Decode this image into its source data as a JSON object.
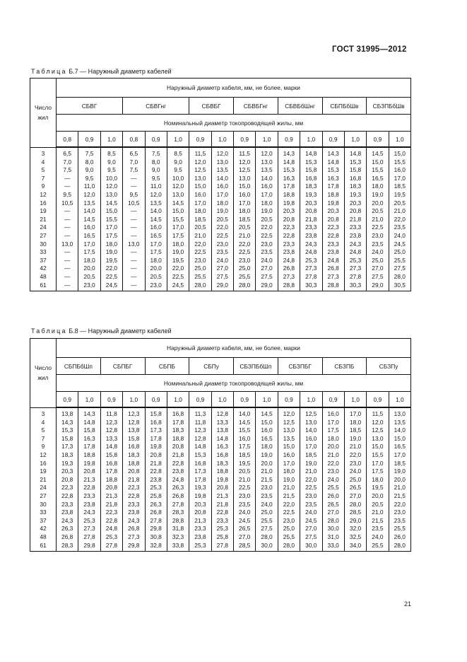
{
  "header": {
    "doc_code": "ГОСТ 31995—2012"
  },
  "tables": [
    {
      "caption_label": "Таблица",
      "caption_rest": "Б.7 — Наружный диаметр кабелей",
      "stub_header": "Число жил",
      "top_header": "Наружный диаметр кабеля, мм, не более, марки",
      "sub_header": "Номинальный диаметр токопроводящей жилы, мм",
      "brands": [
        {
          "name": "СБВГ",
          "sizes": [
            "0,8",
            "0,9",
            "1,0"
          ]
        },
        {
          "name": "СБВГнг",
          "sizes": [
            "0,8",
            "0,9",
            "1,0"
          ]
        },
        {
          "name": "СБВБГ",
          "sizes": [
            "0,9",
            "1,0"
          ]
        },
        {
          "name": "СБВБГнг",
          "sizes": [
            "0,9",
            "1,0"
          ]
        },
        {
          "name": "СБВБбШнг",
          "sizes": [
            "0,9",
            "1,0"
          ]
        },
        {
          "name": "СБПБбШв",
          "sizes": [
            "0,9",
            "1,0"
          ]
        },
        {
          "name": "СБЗПБбШв",
          "sizes": [
            "0,9",
            "1,0"
          ]
        }
      ],
      "rows": [
        [
          "3",
          "6,5",
          "7,5",
          "8,5",
          "6,5",
          "7,5",
          "8,5",
          "11,5",
          "12,0",
          "11,5",
          "12,0",
          "14,3",
          "14,8",
          "14,3",
          "14,8",
          "14,5",
          "15,0"
        ],
        [
          "4",
          "7,0",
          "8,0",
          "9,0",
          "7,0",
          "8,0",
          "9,0",
          "12,0",
          "13,0",
          "12,0",
          "13,0",
          "14,8",
          "15,3",
          "14,8",
          "15,3",
          "15,0",
          "15,5"
        ],
        [
          "5",
          "7,5",
          "9,0",
          "9,5",
          "7,5",
          "9,0",
          "9,5",
          "12,5",
          "13,5",
          "12,5",
          "13,5",
          "15,3",
          "15,8",
          "15,3",
          "15,8",
          "15,5",
          "16,0"
        ],
        [
          "7",
          "—",
          "9,5",
          "10,0",
          "—",
          "9,5",
          "10,0",
          "13,0",
          "14,0",
          "13,0",
          "14,0",
          "16,3",
          "16,8",
          "16,3",
          "16,8",
          "16,5",
          "17,0"
        ],
        [
          "9",
          "—",
          "11,0",
          "12,0",
          "—",
          "11,0",
          "12,0",
          "15,0",
          "16,0",
          "15,0",
          "16,0",
          "17,8",
          "18,3",
          "17,8",
          "18,3",
          "18,0",
          "18,5"
        ],
        [
          "12",
          "9,5",
          "12,0",
          "13,0",
          "9,5",
          "12,0",
          "13,0",
          "16,0",
          "17,0",
          "16,0",
          "17,0",
          "18,8",
          "19,3",
          "18,8",
          "19,3",
          "19,0",
          "19,5"
        ],
        [
          "16",
          "10,5",
          "13,5",
          "14,5",
          "10,5",
          "13,5",
          "14,5",
          "17,0",
          "18,0",
          "17,0",
          "18,0",
          "19,8",
          "20,3",
          "19,8",
          "20,3",
          "20,0",
          "20,5"
        ],
        [
          "19",
          "—",
          "14,0",
          "15,0",
          "—",
          "14,0",
          "15,0",
          "18,0",
          "19,0",
          "18,0",
          "19,0",
          "20,3",
          "20,8",
          "20,3",
          "20,8",
          "20,5",
          "21,0"
        ],
        [
          "21",
          "—",
          "14,5",
          "15,5",
          "—",
          "14,5",
          "15,5",
          "18,5",
          "20,5",
          "18,5",
          "20,5",
          "20,8",
          "21,8",
          "20,8",
          "21,8",
          "21,0",
          "22,0"
        ],
        [
          "24",
          "—",
          "16,0",
          "17,0",
          "—",
          "16,0",
          "17,0",
          "20,5",
          "22,0",
          "20,5",
          "22,0",
          "22,3",
          "23,3",
          "22,3",
          "23,3",
          "22,5",
          "23,5"
        ],
        [
          "27",
          "—",
          "16,5",
          "17,5",
          "—",
          "16,5",
          "17,5",
          "21,0",
          "22,5",
          "21,0",
          "22,5",
          "22,8",
          "23,8",
          "22,8",
          "23,8",
          "23,0",
          "24,0"
        ],
        [
          "30",
          "13,0",
          "17,0",
          "18,0",
          "13,0",
          "17,0",
          "18,0",
          "22,0",
          "23,0",
          "22,0",
          "23,0",
          "23,3",
          "24,3",
          "23,3",
          "24,3",
          "23,5",
          "24,5"
        ],
        [
          "33",
          "—",
          "17,5",
          "19,0",
          "—",
          "17,5",
          "19,0",
          "22,5",
          "23,5",
          "22,5",
          "23,5",
          "23,8",
          "24,8",
          "23,8",
          "24,8",
          "24,0",
          "25,0"
        ],
        [
          "37",
          "—",
          "18,0",
          "19,5",
          "—",
          "18,0",
          "19,5",
          "23,0",
          "24,0",
          "23,0",
          "24,0",
          "24,8",
          "25,3",
          "24,8",
          "25,3",
          "25,0",
          "25,5"
        ],
        [
          "42",
          "—",
          "20,0",
          "22,0",
          "—",
          "20,0",
          "22,0",
          "25,0",
          "27,0",
          "25,0",
          "27,0",
          "26,8",
          "27,3",
          "26,8",
          "27,3",
          "27,0",
          "27,5"
        ],
        [
          "48",
          "—",
          "20,5",
          "22,5",
          "—",
          "20,5",
          "22,5",
          "25,5",
          "27,5",
          "25,5",
          "27,5",
          "27,3",
          "27,8",
          "27,3",
          "27,8",
          "27,5",
          "28,0"
        ],
        [
          "61",
          "—",
          "23,0",
          "24,5",
          "—",
          "23,0",
          "24,5",
          "28,0",
          "29,0",
          "28,0",
          "29,0",
          "28,8",
          "30,3",
          "28,8",
          "30,3",
          "29,0",
          "30,5"
        ]
      ]
    },
    {
      "caption_label": "Таблица",
      "caption_rest": "Б.8 — Наружный диаметр кабелей",
      "stub_header": "Число жил",
      "top_header": "Наружный диаметр кабеля, мм, не более, марки",
      "sub_header": "Номинальный диаметр токопроводящей жилы, мм",
      "brands": [
        {
          "name": "СБПБбШп",
          "sizes": [
            "0,9",
            "1,0"
          ]
        },
        {
          "name": "СБПБГ",
          "sizes": [
            "0,9",
            "1,0"
          ]
        },
        {
          "name": "СБПБ",
          "sizes": [
            "0,9",
            "1,0"
          ]
        },
        {
          "name": "СБПу",
          "sizes": [
            "0,9",
            "1,0"
          ]
        },
        {
          "name": "СБЗПБбШп",
          "sizes": [
            "0,9",
            "1,0"
          ]
        },
        {
          "name": "СБЗПБГ",
          "sizes": [
            "0,9",
            "1,0"
          ]
        },
        {
          "name": "СБЗПБ",
          "sizes": [
            "0,9",
            "1,0"
          ]
        },
        {
          "name": "СБЗПу",
          "sizes": [
            "0,9",
            "1,0"
          ]
        }
      ],
      "rows": [
        [
          "3",
          "13,8",
          "14,3",
          "11,8",
          "12,3",
          "15,8",
          "16,8",
          "11,3",
          "12,8",
          "14,0",
          "14,5",
          "12,0",
          "12,5",
          "16,0",
          "17,0",
          "11,5",
          "13,0"
        ],
        [
          "4",
          "14,3",
          "14,8",
          "12,3",
          "12,8",
          "16,8",
          "17,8",
          "11,8",
          "13,3",
          "14,5",
          "15,0",
          "12,5",
          "13,0",
          "17,0",
          "18,0",
          "12,0",
          "13,5"
        ],
        [
          "5",
          "15,3",
          "15,8",
          "12,8",
          "13,8",
          "17,3",
          "18,3",
          "12,3",
          "13,8",
          "15,5",
          "16,0",
          "13,0",
          "14,0",
          "17,5",
          "18,5",
          "12,5",
          "14,0"
        ],
        [
          "7",
          "15,8",
          "16,3",
          "13,3",
          "15,8",
          "17,8",
          "18,8",
          "12,8",
          "14,8",
          "16,0",
          "16,5",
          "13,5",
          "16,0",
          "18,0",
          "19,0",
          "13,0",
          "15,0"
        ],
        [
          "9",
          "17,3",
          "17,8",
          "14,8",
          "16,8",
          "19,8",
          "20,8",
          "14,8",
          "16,3",
          "17,5",
          "18,0",
          "15,0",
          "17,0",
          "20,0",
          "21,0",
          "15,0",
          "16,5"
        ],
        [
          "12",
          "18,3",
          "18,8",
          "15,8",
          "18,3",
          "20,8",
          "21,8",
          "15,3",
          "16,8",
          "18,5",
          "19,0",
          "16,0",
          "18,5",
          "21,0",
          "22,0",
          "15,5",
          "17,0"
        ],
        [
          "16",
          "19,3",
          "19,8",
          "16,8",
          "18,8",
          "21,8",
          "22,8",
          "16,8",
          "18,3",
          "19,5",
          "20,0",
          "17,0",
          "19,0",
          "22,0",
          "23,0",
          "17,0",
          "18,5"
        ],
        [
          "19",
          "20,3",
          "20,8",
          "17,8",
          "20,8",
          "22,8",
          "23,8",
          "17,3",
          "18,8",
          "20,5",
          "21,0",
          "18,0",
          "21,0",
          "23,0",
          "24,0",
          "17,5",
          "19,0"
        ],
        [
          "21",
          "20,8",
          "21,3",
          "18,8",
          "21,8",
          "23,8",
          "24,8",
          "17,8",
          "19,8",
          "21,0",
          "21,5",
          "19,0",
          "22,0",
          "24,0",
          "25,0",
          "18,0",
          "20,0"
        ],
        [
          "24",
          "22,3",
          "22,8",
          "20,8",
          "22,3",
          "25,3",
          "26,3",
          "19,3",
          "20,8",
          "22,5",
          "23,0",
          "21,0",
          "22,5",
          "25,5",
          "26,5",
          "19,5",
          "21,0"
        ],
        [
          "27",
          "22,8",
          "23,3",
          "21,3",
          "22,8",
          "25,8",
          "26,8",
          "19,8",
          "21,3",
          "23,0",
          "23,5",
          "21,5",
          "23,0",
          "26,0",
          "27,0",
          "20,0",
          "21,5"
        ],
        [
          "30",
          "23,3",
          "23,8",
          "21,8",
          "23,3",
          "26,3",
          "27,8",
          "20,3",
          "21,8",
          "23,5",
          "24,0",
          "22,0",
          "23,5",
          "26,5",
          "28,0",
          "20,5",
          "22,0"
        ],
        [
          "33",
          "23,8",
          "24,3",
          "22,3",
          "23,8",
          "26,8",
          "28,3",
          "20,8",
          "22,8",
          "24,0",
          "25,0",
          "22,5",
          "24,0",
          "27,0",
          "28,5",
          "21,0",
          "23,0"
        ],
        [
          "37",
          "24,3",
          "25,3",
          "22,8",
          "24,3",
          "27,8",
          "28,8",
          "21,3",
          "23,3",
          "24,5",
          "25,5",
          "23,0",
          "24,5",
          "28,0",
          "29,0",
          "21,5",
          "23,5"
        ],
        [
          "42",
          "26,3",
          "27,3",
          "24,8",
          "26,8",
          "29,8",
          "31,8",
          "23,3",
          "25,3",
          "26,5",
          "27,5",
          "25,0",
          "27,0",
          "30,0",
          "32,0",
          "23,5",
          "25,5"
        ],
        [
          "48",
          "26,8",
          "27,8",
          "25,3",
          "27,3",
          "30,8",
          "32,3",
          "23,8",
          "25,8",
          "27,0",
          "28,0",
          "25,5",
          "27,5",
          "31,0",
          "32,5",
          "24,0",
          "26,0"
        ],
        [
          "61",
          "28,3",
          "29,8",
          "27,8",
          "29,8",
          "32,8",
          "33,8",
          "25,3",
          "27,8",
          "28,5",
          "30,0",
          "28,0",
          "30,0",
          "33,0",
          "34,0",
          "25,5",
          "28,0"
        ]
      ]
    }
  ],
  "footer": {
    "page_number": "21"
  }
}
